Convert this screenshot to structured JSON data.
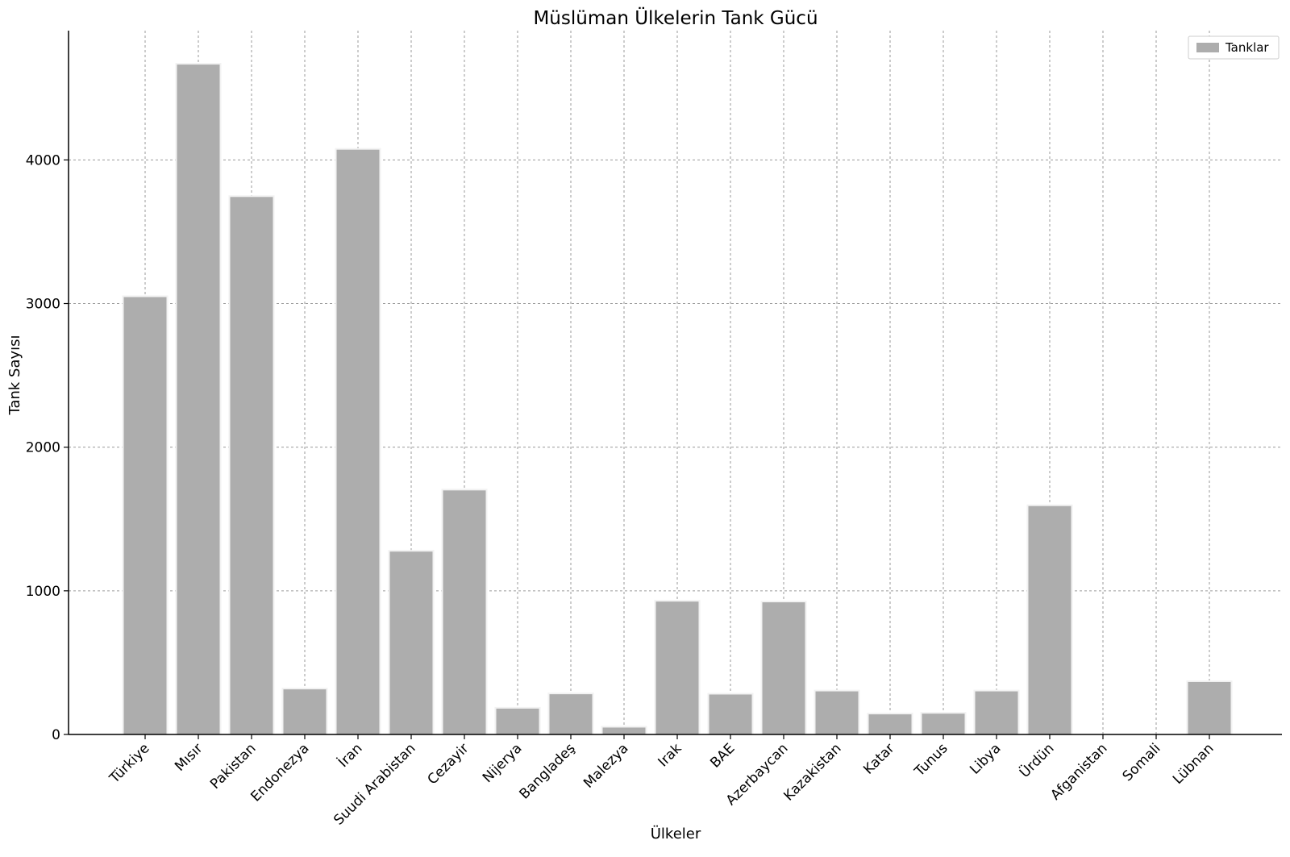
{
  "chart_data": {
    "type": "bar",
    "title": "Müslüman Ülkelerin Tank Gücü",
    "xlabel": "Ülkeler",
    "ylabel": "Tank Sayısı",
    "ylim": [
      0,
      4900
    ],
    "yticks": [
      0,
      1000,
      2000,
      3000,
      4000
    ],
    "grid": true,
    "legend_position": "top-right",
    "bar_color": "#adadad",
    "categories": [
      "Türkiye",
      "Mısır",
      "Pakistan",
      "Endonezya",
      "İran",
      "Suudi Arabistan",
      "Cezayir",
      "Nijerya",
      "Bangladeş",
      "Malezya",
      "Irak",
      "BAE",
      "Azerbaycan",
      "Kazakistan",
      "Katar",
      "Tunus",
      "Libya",
      "Ürdün",
      "Afganistan",
      "Somali",
      "Lübnan"
    ],
    "series": [
      {
        "name": "Tanklar",
        "values": [
          3045,
          4664,
          3742,
          314,
          4071,
          1273,
          1699,
          180,
          280,
          48,
          925,
          278,
          920,
          300,
          140,
          145,
          300,
          1590,
          0,
          0,
          365
        ]
      }
    ]
  }
}
